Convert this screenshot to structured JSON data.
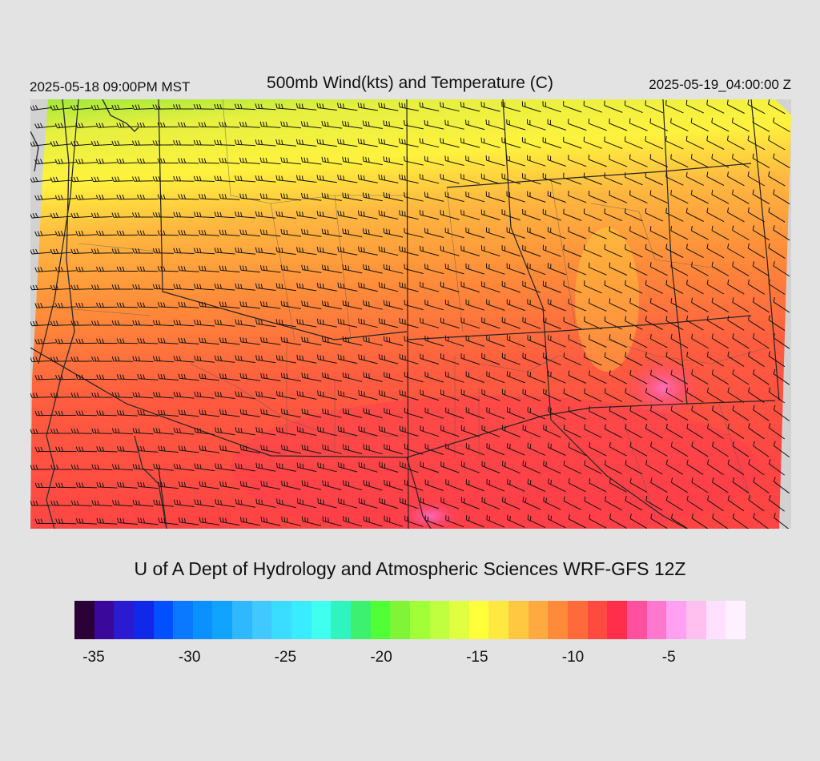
{
  "header": {
    "left_time": "2025-05-18 09:00PM MST",
    "title": "500mb Wind(kts) and Temperature (C)",
    "right_time": "2025-05-19_04:00:00 Z"
  },
  "credit": "U of A Dept of Hydrology and Atmospheric Sciences WRF-GFS 12Z",
  "colorbar": {
    "colors": [
      "#2a0036",
      "#3a089a",
      "#2a1ad0",
      "#1028e8",
      "#0050ff",
      "#0a78ff",
      "#0a90ff",
      "#10a4ff",
      "#30b8ff",
      "#40c8ff",
      "#3adcff",
      "#3aecff",
      "#40ffee",
      "#30f4c0",
      "#3ef070",
      "#50ff36",
      "#80f436",
      "#a0ff36",
      "#c0ff40",
      "#e0ff40",
      "#ffff3a",
      "#ffe840",
      "#ffc840",
      "#ffaa40",
      "#ff8a3a",
      "#ff6a3a",
      "#ff4a40",
      "#ff2e4a",
      "#ff50a0",
      "#ff78d0",
      "#ffa0f0",
      "#ffc0f0",
      "#ffe0ff",
      "#fff0ff"
    ],
    "ticks": [
      {
        "label": "-35",
        "value": -35
      },
      {
        "label": "-30",
        "value": -30
      },
      {
        "label": "-25",
        "value": -25
      },
      {
        "label": "-20",
        "value": -20
      },
      {
        "label": "-15",
        "value": -15
      },
      {
        "label": "-10",
        "value": -10
      },
      {
        "label": "-5",
        "value": -5
      }
    ],
    "min": -36,
    "max": -1
  }
}
